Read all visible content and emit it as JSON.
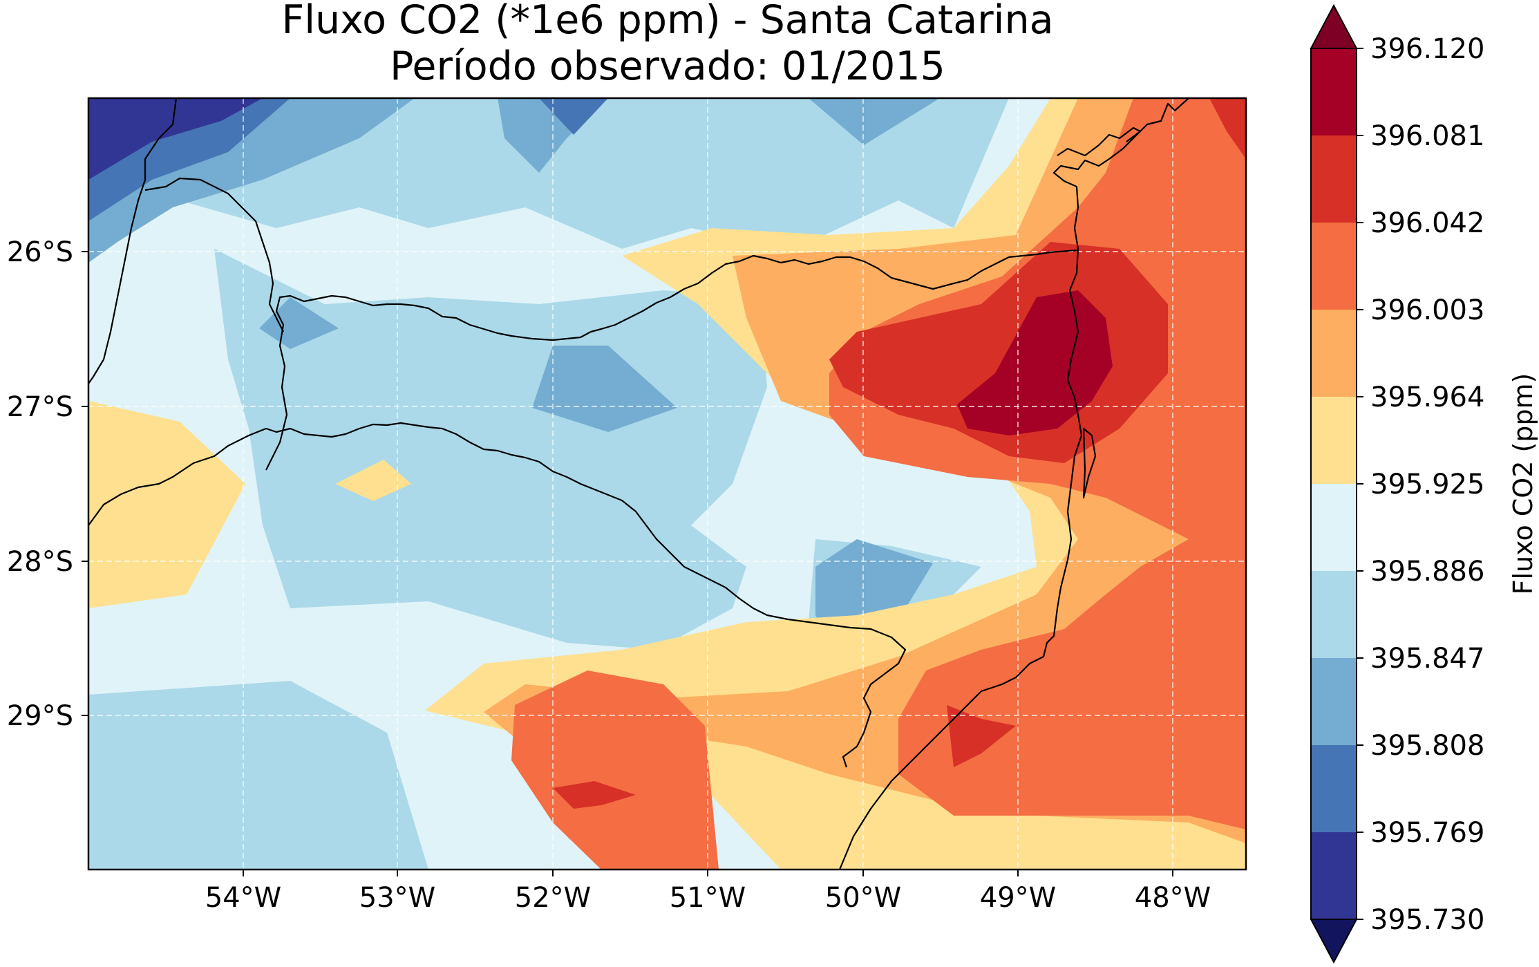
{
  "title": {
    "line1": "Fluxo CO2 (*1e6 ppm) - Santa Catarina",
    "line2": "Período observado: 01/2015"
  },
  "axes": {
    "lon_ticks": [
      "54°W",
      "53°W",
      "52°W",
      "51°W",
      "50°W",
      "49°W",
      "48°W"
    ],
    "lat_ticks": [
      "26°S",
      "27°S",
      "28°S",
      "29°S"
    ],
    "gridlines": true
  },
  "colorbar": {
    "label": "Fluxo CO2 (ppm)",
    "levels": [
      "396.120",
      "396.081",
      "396.042",
      "396.003",
      "395.964",
      "395.925",
      "395.886",
      "395.847",
      "395.808",
      "395.769",
      "395.730"
    ],
    "colors_top_to_bottom": [
      "#a50026",
      "#d73027",
      "#f46d43",
      "#fdae61",
      "#fee090",
      "#e0f3f8",
      "#abd9e9",
      "#74add1",
      "#4575b4",
      "#313695"
    ],
    "extend_max_color": "#7f0025",
    "extend_min_color": "#12145e",
    "extend": "both"
  },
  "map": {
    "region": "Santa Catarina",
    "colormap": "RdYlBu_r",
    "lon_range": [
      "55.0°W",
      "47.5°W"
    ],
    "lat_range": [
      "25.0°S",
      "30.0°S"
    ]
  }
}
